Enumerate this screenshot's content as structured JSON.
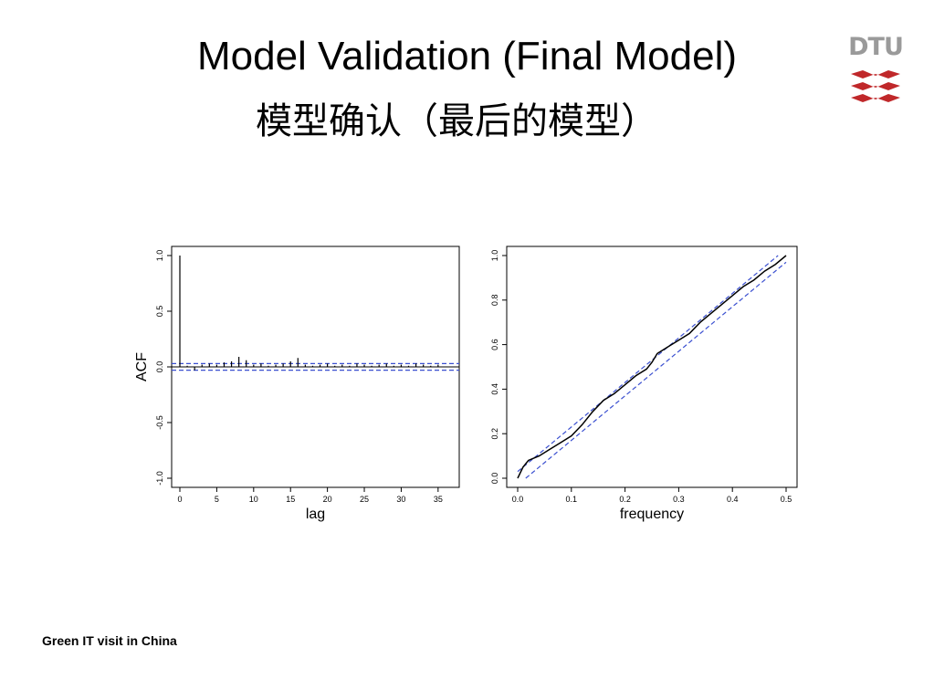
{
  "slide": {
    "title_en": "Model Validation (Final Model)",
    "title_zh": "模型确认（最后的模型）",
    "footer": "Green IT visit in China",
    "logo_text": "DTU"
  },
  "colors": {
    "logo_red": "#c0282a",
    "logo_gray": "#9a9a9a",
    "band": "#3a4fd0"
  },
  "chart_data": [
    {
      "type": "bar",
      "xlabel": "lag",
      "ylabel": "ACF",
      "xlim": [
        0,
        37
      ],
      "ylim": [
        -1.0,
        1.0
      ],
      "x_ticks": [
        "0",
        "5",
        "10",
        "15",
        "20",
        "25",
        "30",
        "35"
      ],
      "y_ticks": [
        "-1.0",
        "-0.5",
        "0.0",
        "0.5",
        "1.0"
      ],
      "confidence_band": [
        -0.03,
        0.03
      ],
      "lags": [
        0,
        1,
        2,
        3,
        4,
        5,
        6,
        7,
        8,
        9,
        10,
        11,
        12,
        13,
        14,
        15,
        16,
        17,
        18,
        19,
        20,
        21,
        22,
        23,
        24,
        25,
        26,
        27,
        28,
        29,
        30,
        31,
        32,
        33,
        34,
        35
      ],
      "values": [
        1.0,
        0.01,
        -0.03,
        0.02,
        0.03,
        0.02,
        0.04,
        0.05,
        0.09,
        0.06,
        0.02,
        0.03,
        0.01,
        0.02,
        0.03,
        0.05,
        0.08,
        0.02,
        0.01,
        0.02,
        0.03,
        0.01,
        0.02,
        0.01,
        0.03,
        0.02,
        0.01,
        0.02,
        0.03,
        0.01,
        0.02,
        0.01,
        0.03,
        0.02,
        0.01,
        0.02
      ]
    },
    {
      "type": "line",
      "xlabel": "frequency",
      "ylabel": "",
      "xlim": [
        0.0,
        0.5
      ],
      "ylim": [
        0.0,
        1.0
      ],
      "x_ticks": [
        "0.0",
        "0.1",
        "0.2",
        "0.3",
        "0.4",
        "0.5"
      ],
      "y_ticks": [
        "0.0",
        "0.2",
        "0.4",
        "0.6",
        "0.8",
        "1.0"
      ],
      "band_offset": 0.03,
      "series": [
        {
          "x": [
            0.0,
            0.01,
            0.02,
            0.04,
            0.06,
            0.08,
            0.1,
            0.12,
            0.14,
            0.16,
            0.18,
            0.2,
            0.22,
            0.24,
            0.25,
            0.26,
            0.28,
            0.3,
            0.32,
            0.34,
            0.36,
            0.38,
            0.4,
            0.42,
            0.44,
            0.46,
            0.48,
            0.5
          ],
          "y": [
            0.0,
            0.05,
            0.08,
            0.1,
            0.13,
            0.16,
            0.19,
            0.24,
            0.3,
            0.35,
            0.38,
            0.42,
            0.46,
            0.49,
            0.52,
            0.56,
            0.59,
            0.62,
            0.65,
            0.7,
            0.74,
            0.78,
            0.82,
            0.86,
            0.89,
            0.93,
            0.96,
            1.0
          ]
        }
      ]
    }
  ]
}
